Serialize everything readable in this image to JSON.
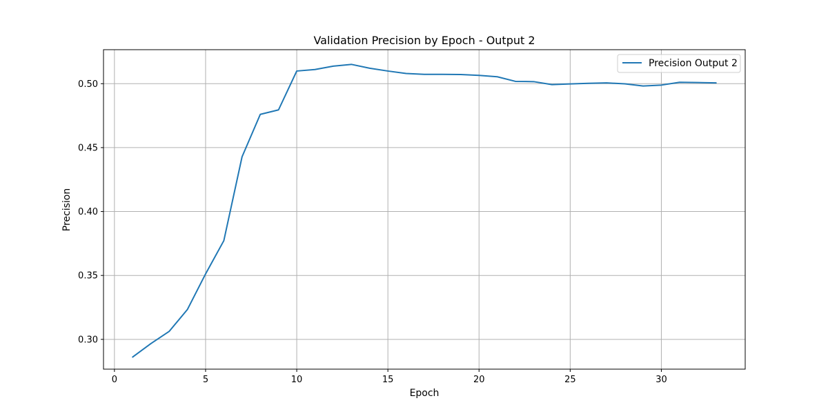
{
  "chart_data": {
    "type": "line",
    "title": "Validation Precision by Epoch - Output 2",
    "xlabel": "Epoch",
    "ylabel": "Precision",
    "xlim": [
      -0.6,
      34.6
    ],
    "ylim": [
      0.2767,
      0.5266
    ],
    "xticks": [
      0,
      5,
      10,
      15,
      20,
      25,
      30
    ],
    "xtick_labels": [
      "0",
      "5",
      "10",
      "15",
      "20",
      "25",
      "30"
    ],
    "yticks": [
      0.3,
      0.35,
      0.4,
      0.45,
      0.5
    ],
    "ytick_labels": [
      "0.30",
      "0.35",
      "0.40",
      "0.45",
      "0.50"
    ],
    "grid": true,
    "legend_position": "upper right",
    "series": [
      {
        "name": "Precision Output 2",
        "color": "#1f77b4",
        "x": [
          1,
          2,
          3,
          4,
          5,
          6,
          7,
          8,
          9,
          10,
          11,
          12,
          13,
          14,
          15,
          16,
          17,
          18,
          19,
          20,
          21,
          22,
          23,
          24,
          25,
          26,
          27,
          28,
          29,
          30,
          31,
          32,
          33
        ],
        "y": [
          0.2862,
          0.2967,
          0.3062,
          0.3233,
          0.3512,
          0.3772,
          0.4428,
          0.476,
          0.4795,
          0.5099,
          0.5111,
          0.5137,
          0.5151,
          0.5121,
          0.5099,
          0.508,
          0.5073,
          0.5073,
          0.5072,
          0.5065,
          0.5054,
          0.5018,
          0.5016,
          0.4993,
          0.4998,
          0.5003,
          0.5006,
          0.4999,
          0.4982,
          0.4989,
          0.5011,
          0.5009,
          0.5006
        ]
      }
    ]
  }
}
